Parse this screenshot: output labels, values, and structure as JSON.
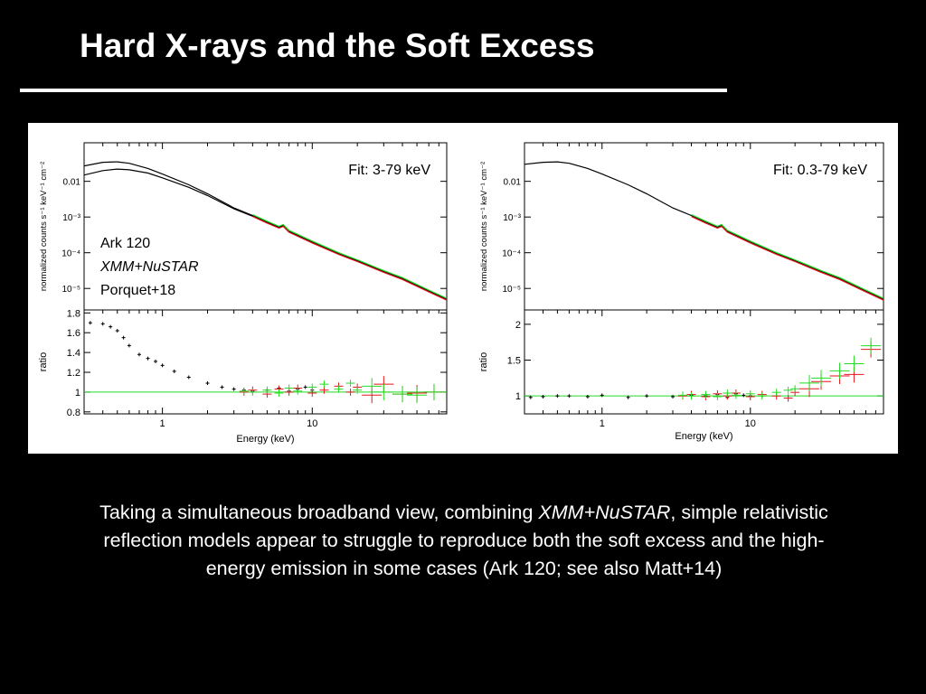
{
  "slide": {
    "title": "Hard X-rays and the Soft Excess",
    "caption": {
      "pre": "Taking a simultaneous broadband view, combining ",
      "em": "XMM+NuSTAR",
      "post": ", simple relativistic reflection models appear to struggle to reproduce both the soft excess and the high-energy emission in some cases (Ark 120; see also Matt+14)"
    }
  },
  "colors": {
    "model": "#000000",
    "data_red": "#e8141e",
    "data_green": "#22dd22",
    "unity_line": "#22dd22"
  },
  "chart_data": [
    {
      "type": "line",
      "panel": "left",
      "fit_label": "Fit: 3-79 keV",
      "annotation": {
        "source": "Ark 120",
        "instruments": "XMM+NuSTAR",
        "reference": "Porquet+18"
      },
      "xlabel": "Energy (keV)",
      "xscale": "log",
      "xlim": [
        0.3,
        79
      ],
      "xticks": [
        "1",
        "10"
      ],
      "spectrum": {
        "ylabel": "normalized counts s⁻¹ keV⁻¹ cm⁻²",
        "yscale": "log",
        "ylim": [
          2.5e-06,
          0.12
        ],
        "yticks": [
          "0.01",
          "10⁻³",
          "10⁻⁴",
          "10⁻⁵"
        ],
        "series": [
          {
            "x": [
              0.3,
              0.4,
              0.5,
              0.6,
              0.8,
              1,
              1.5,
              2,
              3,
              4,
              5,
              6,
              6.4,
              7,
              10,
              15,
              20,
              30,
              40,
              60,
              79
            ],
            "y": [
              0.027,
              0.034,
              0.035,
              0.032,
              0.023,
              0.016,
              0.008,
              0.0045,
              0.0018,
              0.0011,
              0.00072,
              0.00052,
              0.00058,
              0.0004,
              0.0002,
              9.5e-05,
              6e-05,
              3e-05,
              1.9e-05,
              8.5e-06,
              5e-06
            ]
          },
          {
            "x": [
              0.3,
              0.4,
              0.5,
              0.6,
              0.8,
              1,
              1.5,
              2,
              3,
              4,
              5,
              6,
              6.4,
              7,
              10,
              15,
              20,
              30,
              40,
              60,
              79
            ],
            "y": [
              0.015,
              0.02,
              0.022,
              0.021,
              0.017,
              0.0125,
              0.0068,
              0.004,
              0.0017,
              0.00105,
              0.0007,
              0.0005,
              0.00056,
              0.00039,
              0.0002,
              9.5e-05,
              6e-05,
              3e-05,
              1.9e-05,
              8.5e-06,
              5e-06
            ]
          }
        ]
      },
      "ratio": {
        "ylabel": "ratio",
        "ylim": [
          0.78,
          1.83
        ],
        "yticks": [
          "0.8",
          "1",
          "1.2",
          "1.4",
          "1.6",
          "1.8"
        ],
        "series": [
          {
            "x": [
              0.33,
              0.4,
              0.45,
              0.5,
              0.55,
              0.6,
              0.7,
              0.8,
              0.9,
              1,
              1.2,
              1.5,
              2,
              2.5,
              3,
              3.5,
              4,
              5,
              6,
              7,
              8,
              9,
              10
            ],
            "y": [
              1.7,
              1.69,
              1.66,
              1.62,
              1.55,
              1.47,
              1.38,
              1.34,
              1.31,
              1.27,
              1.21,
              1.15,
              1.09,
              1.05,
              1.03,
              1.02,
              1.01,
              1.02,
              1.04,
              1.01,
              1.03,
              1.05,
              1.02
            ]
          },
          {
            "x": [
              3.5,
              4,
              5,
              6,
              7,
              8,
              10,
              12,
              15,
              18,
              20,
              25,
              30,
              40,
              50,
              65
            ],
            "y": [
              1.0,
              1.02,
              0.98,
              1.03,
              1.0,
              1.04,
              0.99,
              1.02,
              1.06,
              1.0,
              1.05,
              0.97,
              1.08,
              0.98,
              0.99,
              1.0
            ]
          },
          {
            "x": [
              3.5,
              4,
              5,
              6,
              7,
              8,
              10,
              12,
              15,
              18,
              20,
              25,
              30,
              40,
              50,
              65
            ],
            "y": [
              1.01,
              1.0,
              1.02,
              0.99,
              1.04,
              1.01,
              1.05,
              1.08,
              1.03,
              1.09,
              1.02,
              1.06,
              1.0,
              0.98,
              0.97,
              1.0
            ]
          }
        ],
        "unity": 1
      }
    },
    {
      "type": "line",
      "panel": "right",
      "fit_label": "Fit: 0.3-79 keV",
      "xlabel": "Energy (keV)",
      "xscale": "log",
      "xlim": [
        0.3,
        79
      ],
      "xticks": [
        "1",
        "10"
      ],
      "spectrum": {
        "ylabel": "normalized counts s⁻¹ keV⁻¹ cm⁻²",
        "yscale": "log",
        "ylim": [
          2.5e-06,
          0.12
        ],
        "yticks": [
          "0.01",
          "10⁻³",
          "10⁻⁴",
          "10⁻⁵"
        ],
        "series": [
          {
            "x": [
              0.3,
              0.4,
              0.5,
              0.6,
              0.8,
              1,
              1.5,
              2,
              3,
              4,
              5,
              6,
              6.4,
              7,
              10,
              15,
              20,
              30,
              40,
              60,
              79
            ],
            "y": [
              0.03,
              0.034,
              0.035,
              0.032,
              0.023,
              0.016,
              0.008,
              0.0045,
              0.0018,
              0.0011,
              0.00072,
              0.00052,
              0.00058,
              0.0004,
              0.0002,
              9.5e-05,
              6e-05,
              3e-05,
              1.9e-05,
              8.5e-06,
              5e-06
            ]
          }
        ]
      },
      "ratio": {
        "ylabel": "ratio",
        "ylim": [
          0.75,
          2.2
        ],
        "yticks": [
          "1",
          "1.5",
          "2"
        ],
        "series": [
          {
            "x": [
              0.33,
              0.4,
              0.5,
              0.6,
              0.8,
              1,
              1.5,
              2,
              3,
              4,
              5,
              6,
              7,
              8,
              9,
              10
            ],
            "y": [
              0.98,
              0.99,
              1.0,
              1.0,
              0.99,
              1.01,
              0.98,
              1.0,
              0.99,
              1.01,
              1.0,
              1.02,
              0.98,
              1.03,
              1.01,
              1.0
            ]
          },
          {
            "x": [
              3.5,
              4,
              5,
              6,
              7,
              8,
              10,
              12,
              15,
              18,
              20,
              25,
              30,
              40,
              50,
              65
            ],
            "y": [
              1.0,
              1.02,
              0.99,
              1.03,
              1.0,
              1.04,
              0.99,
              1.02,
              1.0,
              0.97,
              1.05,
              1.1,
              1.2,
              1.28,
              1.3,
              1.65
            ]
          },
          {
            "x": [
              3.5,
              4,
              5,
              6,
              7,
              8,
              10,
              12,
              15,
              18,
              20,
              25,
              30,
              40,
              50,
              65
            ],
            "y": [
              1.01,
              1.0,
              1.02,
              0.99,
              1.04,
              1.01,
              1.03,
              1.0,
              1.05,
              1.08,
              1.1,
              1.18,
              1.25,
              1.35,
              1.45,
              1.7
            ]
          }
        ],
        "unity": 1
      }
    }
  ]
}
